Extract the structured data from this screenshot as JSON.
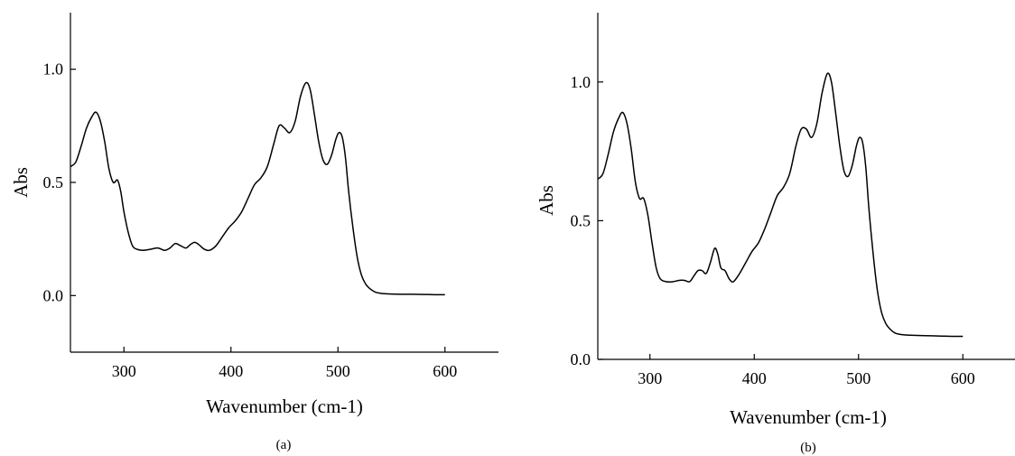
{
  "chart_data": [
    {
      "type": "line",
      "caption": "(a)",
      "xlabel": "Wavenumber (cm-1)",
      "ylabel": "Abs",
      "xlim": [
        250,
        650
      ],
      "ylim": [
        -0.25,
        1.25
      ],
      "xticks": [
        300,
        400,
        500,
        600
      ],
      "yticks": [
        0.0,
        0.5,
        1.0
      ],
      "xtick_labels": [
        "300",
        "400",
        "500",
        "600"
      ],
      "ytick_labels": [
        "0.0",
        "0.5",
        "1.0"
      ],
      "grid": false,
      "series": [
        {
          "x": [
            250,
            255,
            260,
            265,
            270,
            274,
            278,
            282,
            286,
            290,
            294,
            297,
            300,
            304,
            308,
            312,
            318,
            325,
            332,
            338,
            343,
            348,
            353,
            358,
            362,
            366,
            370,
            375,
            380,
            386,
            392,
            398,
            404,
            410,
            416,
            422,
            428,
            434,
            440,
            445,
            450,
            455,
            460,
            465,
            470,
            474,
            478,
            482,
            486,
            490,
            494,
            498,
            501,
            504,
            507,
            510,
            514,
            518,
            522,
            526,
            530,
            535,
            540,
            545,
            550,
            560,
            570,
            580,
            590,
            600
          ],
          "y": [
            0.57,
            0.59,
            0.66,
            0.74,
            0.79,
            0.81,
            0.77,
            0.68,
            0.56,
            0.5,
            0.51,
            0.46,
            0.37,
            0.28,
            0.22,
            0.205,
            0.2,
            0.205,
            0.21,
            0.2,
            0.21,
            0.23,
            0.22,
            0.21,
            0.225,
            0.235,
            0.225,
            0.205,
            0.2,
            0.22,
            0.26,
            0.3,
            0.33,
            0.37,
            0.43,
            0.49,
            0.52,
            0.57,
            0.67,
            0.75,
            0.74,
            0.72,
            0.77,
            0.88,
            0.94,
            0.91,
            0.8,
            0.68,
            0.6,
            0.58,
            0.62,
            0.69,
            0.72,
            0.7,
            0.61,
            0.46,
            0.3,
            0.17,
            0.09,
            0.05,
            0.03,
            0.015,
            0.01,
            0.008,
            0.007,
            0.006,
            0.006,
            0.005,
            0.004,
            0.004
          ]
        }
      ]
    },
    {
      "type": "line",
      "caption": "(b)",
      "xlabel": "Wavenumber (cm-1)",
      "ylabel": "Abs",
      "xlim": [
        250,
        650
      ],
      "ylim": [
        0.0,
        1.25
      ],
      "xticks": [
        300,
        400,
        500,
        600
      ],
      "yticks": [
        0.0,
        0.5,
        1.0
      ],
      "xtick_labels": [
        "300",
        "400",
        "500",
        "600"
      ],
      "ytick_labels": [
        "0.0",
        "0.5",
        "1.0"
      ],
      "grid": false,
      "series": [
        {
          "x": [
            250,
            255,
            260,
            265,
            270,
            274,
            278,
            282,
            286,
            290,
            294,
            298,
            302,
            306,
            310,
            316,
            322,
            328,
            333,
            338,
            342,
            346,
            350,
            354,
            358,
            362,
            365,
            368,
            372,
            376,
            380,
            386,
            392,
            398,
            404,
            410,
            416,
            422,
            428,
            434,
            440,
            445,
            450,
            455,
            460,
            465,
            470,
            474,
            478,
            482,
            486,
            490,
            494,
            498,
            501,
            504,
            507,
            510,
            514,
            518,
            522,
            526,
            530,
            535,
            540,
            545,
            550,
            560,
            570,
            580,
            590,
            600
          ],
          "y": [
            0.65,
            0.67,
            0.74,
            0.82,
            0.87,
            0.89,
            0.85,
            0.76,
            0.64,
            0.58,
            0.58,
            0.52,
            0.42,
            0.33,
            0.29,
            0.28,
            0.28,
            0.285,
            0.285,
            0.28,
            0.3,
            0.32,
            0.32,
            0.31,
            0.35,
            0.4,
            0.38,
            0.33,
            0.32,
            0.29,
            0.28,
            0.31,
            0.35,
            0.39,
            0.42,
            0.47,
            0.53,
            0.59,
            0.62,
            0.67,
            0.77,
            0.83,
            0.83,
            0.8,
            0.85,
            0.96,
            1.03,
            1.0,
            0.89,
            0.77,
            0.68,
            0.66,
            0.7,
            0.77,
            0.8,
            0.78,
            0.69,
            0.54,
            0.38,
            0.25,
            0.17,
            0.13,
            0.11,
            0.095,
            0.09,
            0.088,
            0.087,
            0.086,
            0.085,
            0.084,
            0.083,
            0.083
          ]
        }
      ]
    }
  ]
}
